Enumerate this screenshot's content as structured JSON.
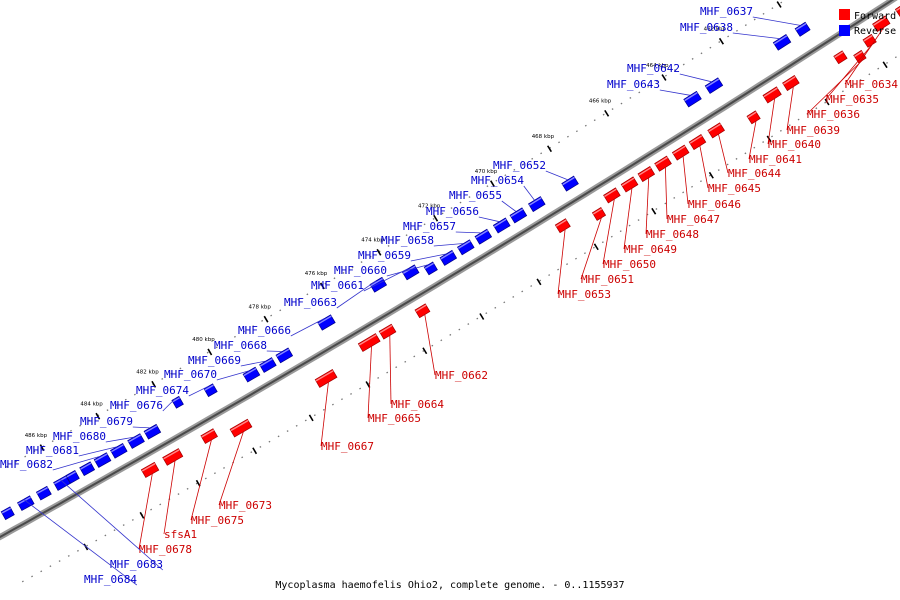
{
  "caption": "Mycoplasma haemofelis Ohio2, complete genome. - 0..1155937",
  "legend": [
    {
      "label": "Forward",
      "color": "#ff0000"
    },
    {
      "label": "Reverse",
      "color": "#0000ff"
    }
  ],
  "strand_colors": {
    "forward": "#ff0000",
    "reverse": "#0000ff",
    "forward_label": "#cc0000",
    "reverse_label": "#0000cc"
  },
  "kbp_ticks": [
    "458 kbp",
    "460 kbp",
    "462 kbp",
    "464 kbp",
    "466 kbp",
    "468 kbp",
    "470 kbp",
    "472 kbp",
    "474 kbp",
    "476 kbp",
    "478 kbp",
    "480 kbp",
    "482 kbp",
    "484 kbp",
    "486 kbp"
  ],
  "genes": [
    {
      "id": "MHF_0634",
      "strand": "forward"
    },
    {
      "id": "MHF_0635",
      "strand": "forward"
    },
    {
      "id": "MHF_0636",
      "strand": "forward"
    },
    {
      "id": "MHF_0637",
      "strand": "reverse"
    },
    {
      "id": "MHF_0638",
      "strand": "reverse"
    },
    {
      "id": "MHF_0639",
      "strand": "forward"
    },
    {
      "id": "MHF_0640",
      "strand": "forward"
    },
    {
      "id": "MHF_0641",
      "strand": "forward"
    },
    {
      "id": "MHF_0642",
      "strand": "reverse"
    },
    {
      "id": "MHF_0643",
      "strand": "reverse"
    },
    {
      "id": "MHF_0644",
      "strand": "forward"
    },
    {
      "id": "MHF_0645",
      "strand": "forward"
    },
    {
      "id": "MHF_0646",
      "strand": "forward"
    },
    {
      "id": "MHF_0647",
      "strand": "forward"
    },
    {
      "id": "MHF_0648",
      "strand": "forward"
    },
    {
      "id": "MHF_0649",
      "strand": "forward"
    },
    {
      "id": "MHF_0650",
      "strand": "forward"
    },
    {
      "id": "MHF_0651",
      "strand": "forward"
    },
    {
      "id": "MHF_0652",
      "strand": "reverse"
    },
    {
      "id": "MHF_0653",
      "strand": "forward"
    },
    {
      "id": "MHF_0654",
      "strand": "reverse"
    },
    {
      "id": "MHF_0655",
      "strand": "reverse"
    },
    {
      "id": "MHF_0656",
      "strand": "reverse"
    },
    {
      "id": "MHF_0657",
      "strand": "reverse"
    },
    {
      "id": "MHF_0658",
      "strand": "reverse"
    },
    {
      "id": "MHF_0659",
      "strand": "reverse"
    },
    {
      "id": "MHF_0660",
      "strand": "reverse"
    },
    {
      "id": "MHF_0661",
      "strand": "reverse"
    },
    {
      "id": "MHF_0662",
      "strand": "forward"
    },
    {
      "id": "MHF_0663",
      "strand": "reverse"
    },
    {
      "id": "MHF_0664",
      "strand": "forward"
    },
    {
      "id": "MHF_0665",
      "strand": "forward"
    },
    {
      "id": "MHF_0666",
      "strand": "reverse"
    },
    {
      "id": "MHF_0667",
      "strand": "forward"
    },
    {
      "id": "MHF_0668",
      "strand": "reverse"
    },
    {
      "id": "MHF_0669",
      "strand": "reverse"
    },
    {
      "id": "MHF_0670",
      "strand": "reverse"
    },
    {
      "id": "MHF_0673",
      "strand": "forward"
    },
    {
      "id": "MHF_0674",
      "strand": "reverse"
    },
    {
      "id": "MHF_0675",
      "strand": "forward"
    },
    {
      "id": "MHF_0676",
      "strand": "reverse"
    },
    {
      "id": "MHF_0679",
      "strand": "reverse"
    },
    {
      "id": "MHF_0680",
      "strand": "reverse"
    },
    {
      "id": "MHF_0681",
      "strand": "reverse"
    },
    {
      "id": "MHF_0682",
      "strand": "reverse"
    },
    {
      "id": "sfsA1",
      "strand": "forward"
    },
    {
      "id": "MHF_0678",
      "strand": "forward"
    },
    {
      "id": "MHF_0683",
      "strand": "reverse"
    },
    {
      "id": "MHF_0684",
      "strand": "reverse"
    }
  ]
}
